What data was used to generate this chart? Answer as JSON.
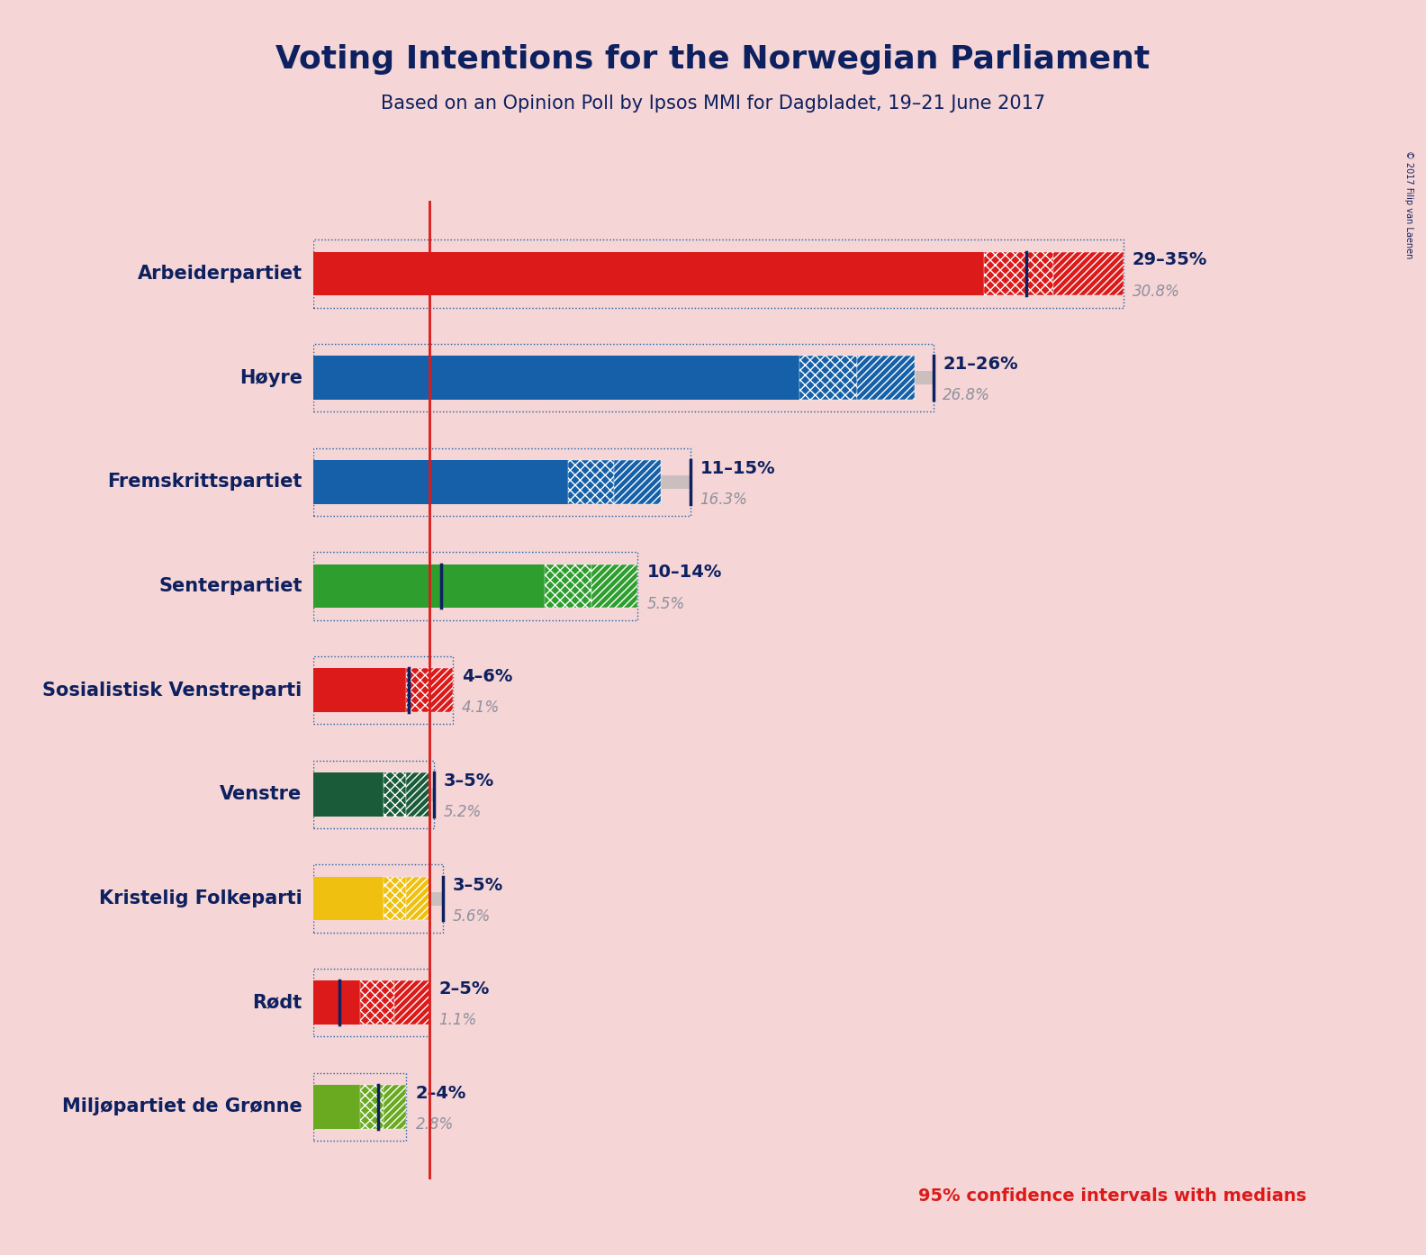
{
  "title": "Voting Intentions for the Norwegian Parliament",
  "subtitle": "Based on an Opinion Poll by Ipsos MMI for Dagbladet, 19–21 June 2017",
  "copyright": "© 2017 Filip van Laenen",
  "footnote": "95% confidence intervals with medians",
  "background_color": "#f5d5d5",
  "title_color": "#0d2060",
  "parties": [
    {
      "name": "Arbeiderpartiet",
      "ci_low": 29,
      "ci_high": 35,
      "median": 30.8,
      "color": "#dc1a1a",
      "label_range": "29–35%",
      "label_median": "30.8%"
    },
    {
      "name": "Høyre",
      "ci_low": 21,
      "ci_high": 26,
      "median": 26.8,
      "color": "#1560a8",
      "label_range": "21–26%",
      "label_median": "26.8%"
    },
    {
      "name": "Fremskrittspartiet",
      "ci_low": 11,
      "ci_high": 15,
      "median": 16.3,
      "color": "#1560a8",
      "label_range": "11–15%",
      "label_median": "16.3%"
    },
    {
      "name": "Senterpartiet",
      "ci_low": 10,
      "ci_high": 14,
      "median": 5.5,
      "color": "#2e9e2e",
      "label_range": "10–14%",
      "label_median": "5.5%"
    },
    {
      "name": "Sosialistisk Venstreparti",
      "ci_low": 4,
      "ci_high": 6,
      "median": 4.1,
      "color": "#dc1a1a",
      "label_range": "4–6%",
      "label_median": "4.1%"
    },
    {
      "name": "Venstre",
      "ci_low": 3,
      "ci_high": 5,
      "median": 5.2,
      "color": "#1a5c3a",
      "label_range": "3–5%",
      "label_median": "5.2%"
    },
    {
      "name": "Kristelig Folkeparti",
      "ci_low": 3,
      "ci_high": 5,
      "median": 5.6,
      "color": "#f0c010",
      "label_range": "3–5%",
      "label_median": "5.6%"
    },
    {
      "name": "Rødt",
      "ci_low": 2,
      "ci_high": 5,
      "median": 1.1,
      "color": "#dc1a1a",
      "label_range": "2–5%",
      "label_median": "1.1%"
    },
    {
      "name": "Miljøpartiet de Grønne",
      "ci_low": 2,
      "ci_high": 4,
      "median": 2.8,
      "color": "#6aaa20",
      "label_range": "2–4%",
      "label_median": "2.8%"
    }
  ],
  "red_line_x": 5.0,
  "xlim": [
    0,
    37
  ],
  "label_color_range": "#0d2060",
  "label_color_median": "#9090a0"
}
